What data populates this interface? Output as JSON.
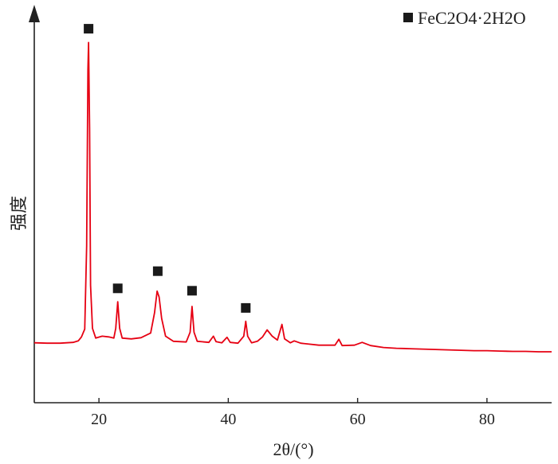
{
  "chart_data": {
    "type": "line",
    "title": "",
    "xlabel": "2θ/(°)",
    "ylabel": "强度",
    "xlim": [
      10,
      90
    ],
    "ylim": [
      0,
      1.0
    ],
    "x_ticks": [
      20,
      40,
      60,
      80
    ],
    "x_tick_labels": [
      "20",
      "40",
      "60",
      "80"
    ],
    "y_ticks_shown": false,
    "grid": false,
    "series_color": "#e60012",
    "legend": {
      "position": "top-right",
      "entries": [
        {
          "marker": "square",
          "label": "FeC2O4·2H2O"
        }
      ]
    },
    "peak_markers": [
      {
        "x": 18.4,
        "y": 0.955,
        "marker": "square"
      },
      {
        "x": 22.9,
        "y": 0.292,
        "marker": "square"
      },
      {
        "x": 29.1,
        "y": 0.336,
        "marker": "square"
      },
      {
        "x": 34.4,
        "y": 0.286,
        "marker": "square"
      },
      {
        "x": 42.7,
        "y": 0.242,
        "marker": "square"
      }
    ],
    "series": [
      {
        "points": [
          [
            10,
            0.153
          ],
          [
            12,
            0.152
          ],
          [
            14,
            0.152
          ],
          [
            16,
            0.154
          ],
          [
            16.8,
            0.158
          ],
          [
            17.3,
            0.168
          ],
          [
            17.8,
            0.188
          ],
          [
            18.1,
            0.4
          ],
          [
            18.3,
            0.85
          ],
          [
            18.4,
            0.92
          ],
          [
            18.55,
            0.7
          ],
          [
            18.7,
            0.3
          ],
          [
            19.0,
            0.19
          ],
          [
            19.5,
            0.165
          ],
          [
            20.5,
            0.17
          ],
          [
            21.5,
            0.168
          ],
          [
            22.3,
            0.165
          ],
          [
            22.6,
            0.19
          ],
          [
            22.9,
            0.258
          ],
          [
            23.2,
            0.19
          ],
          [
            23.6,
            0.165
          ],
          [
            25,
            0.163
          ],
          [
            26.5,
            0.166
          ],
          [
            28,
            0.178
          ],
          [
            28.6,
            0.23
          ],
          [
            29.0,
            0.285
          ],
          [
            29.3,
            0.27
          ],
          [
            29.7,
            0.215
          ],
          [
            30.3,
            0.17
          ],
          [
            31.5,
            0.157
          ],
          [
            33.5,
            0.155
          ],
          [
            34.1,
            0.18
          ],
          [
            34.4,
            0.246
          ],
          [
            34.7,
            0.18
          ],
          [
            35.2,
            0.157
          ],
          [
            37,
            0.154
          ],
          [
            37.7,
            0.17
          ],
          [
            38.1,
            0.156
          ],
          [
            39,
            0.153
          ],
          [
            39.8,
            0.167
          ],
          [
            40.3,
            0.154
          ],
          [
            41.5,
            0.152
          ],
          [
            42.4,
            0.17
          ],
          [
            42.7,
            0.208
          ],
          [
            43.0,
            0.17
          ],
          [
            43.6,
            0.153
          ],
          [
            44.5,
            0.157
          ],
          [
            45.3,
            0.168
          ],
          [
            46.0,
            0.186
          ],
          [
            46.8,
            0.17
          ],
          [
            47.6,
            0.16
          ],
          [
            48.3,
            0.2
          ],
          [
            48.7,
            0.163
          ],
          [
            49.6,
            0.153
          ],
          [
            50.2,
            0.158
          ],
          [
            51.2,
            0.152
          ],
          [
            54,
            0.147
          ],
          [
            56.5,
            0.147
          ],
          [
            57.1,
            0.162
          ],
          [
            57.6,
            0.146
          ],
          [
            59.5,
            0.147
          ],
          [
            60.7,
            0.154
          ],
          [
            62,
            0.146
          ],
          [
            64,
            0.141
          ],
          [
            66,
            0.139
          ],
          [
            68,
            0.138
          ],
          [
            70,
            0.137
          ],
          [
            72,
            0.136
          ],
          [
            74,
            0.135
          ],
          [
            76,
            0.134
          ],
          [
            78,
            0.133
          ],
          [
            80,
            0.133
          ],
          [
            82,
            0.132
          ],
          [
            84,
            0.131
          ],
          [
            86,
            0.131
          ],
          [
            88,
            0.13
          ],
          [
            90,
            0.13
          ]
        ]
      }
    ]
  }
}
